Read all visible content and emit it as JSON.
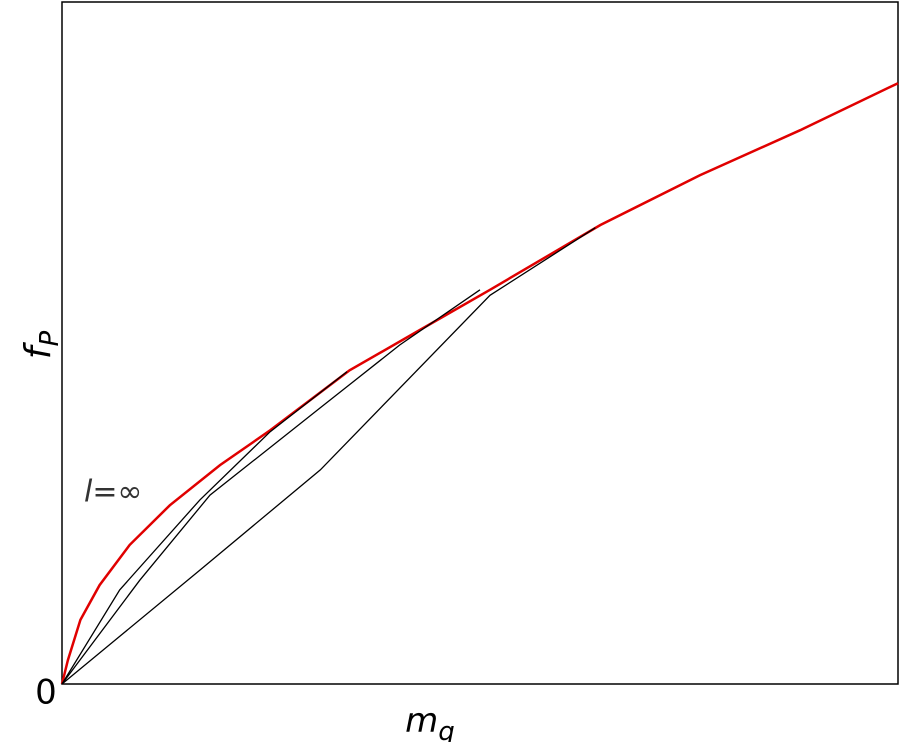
{
  "chart_data": {
    "type": "line",
    "xlabel": "m",
    "xlabel_sub": "q",
    "ylabel": "f",
    "ylabel_sub": "P",
    "xlim": [
      0,
      1
    ],
    "ylim": [
      0,
      1
    ],
    "xticks": [
      0
    ],
    "series": [
      {
        "name": "l=∞",
        "color": "#e00000",
        "x": [
          0,
          0.007,
          0.022,
          0.045,
          0.081,
          0.129,
          0.189,
          0.249,
          0.344,
          0.428,
          0.512,
          0.644,
          0.763,
          0.883,
          1.0
        ],
        "values": [
          0,
          0.035,
          0.094,
          0.145,
          0.204,
          0.262,
          0.321,
          0.372,
          0.46,
          0.519,
          0.578,
          0.673,
          0.746,
          0.812,
          0.881
        ]
      },
      {
        "color": "#000000",
        "x": [
          0,
          0.069,
          0.165,
          0.249,
          0.341
        ],
        "values": [
          0,
          0.138,
          0.27,
          0.37,
          0.458
        ]
      },
      {
        "color": "#000000",
        "x": [
          0,
          0.093,
          0.177,
          0.309,
          0.404,
          0.5
        ],
        "values": [
          0,
          0.152,
          0.277,
          0.405,
          0.497,
          0.578
        ]
      },
      {
        "color": "#000000",
        "x": [
          0,
          0.165,
          0.309,
          0.512,
          0.638
        ],
        "values": [
          0,
          0.167,
          0.314,
          0.57,
          0.669
        ]
      }
    ]
  }
}
